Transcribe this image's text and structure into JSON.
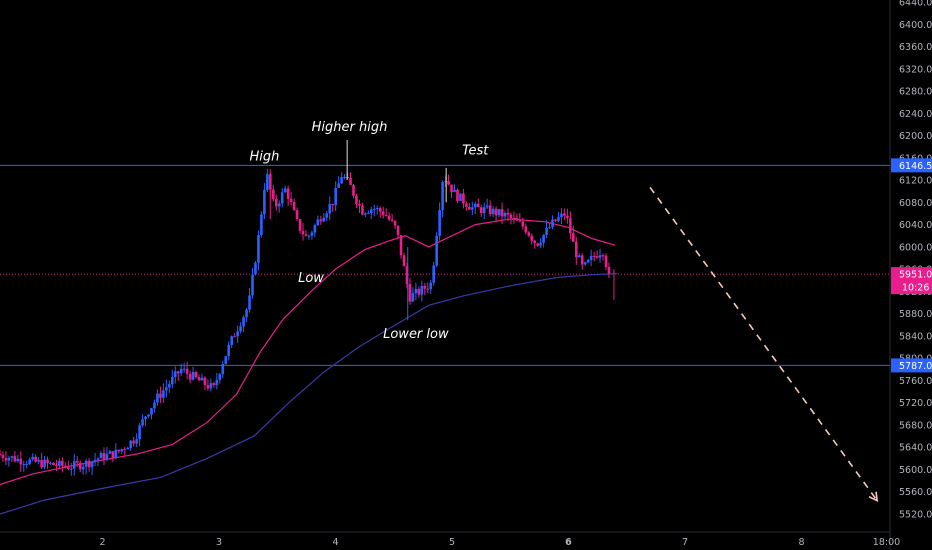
{
  "chart_data": {
    "type": "candlestick",
    "x_tick_labels": [
      "2",
      "3",
      "4",
      "5",
      "6",
      "7",
      "8",
      "18:00"
    ],
    "y_tick_labels": [
      "6440.0",
      "6400.0",
      "6360.0",
      "6320.0",
      "6280.0",
      "6240.0",
      "6200.0",
      "6160.0",
      "6120.0",
      "6080.0",
      "6040.0",
      "6000.0",
      "5960.0",
      "5920.0",
      "5880.0",
      "5840.0",
      "5800.0",
      "5760.0",
      "5720.0",
      "5680.0",
      "5640.0",
      "5600.0",
      "5560.0",
      "5520.0"
    ],
    "ylim": [
      5505,
      6450
    ],
    "xlim": [
      1.12,
      8.76
    ],
    "horizontal_levels": [
      {
        "value": 6146.5,
        "label": "6146.5",
        "color": "#2962ff"
      },
      {
        "value": 5787.0,
        "label": "5787.0",
        "color": "#2962ff"
      }
    ],
    "current_price": {
      "value": 5951.0,
      "label": "5951.0",
      "countdown": "10:26",
      "color": "#e91e8c"
    },
    "annotations": [
      {
        "text": "High",
        "x": 3.39,
        "y": 6155
      },
      {
        "text": "Higher high",
        "x": 4.12,
        "y": 6208
      },
      {
        "text": "Test",
        "x": 5.2,
        "y": 6166
      },
      {
        "text": "Low",
        "x": 3.79,
        "y": 5937
      },
      {
        "text": "Lower low",
        "x": 4.69,
        "y": 5836
      }
    ],
    "price_path": [
      [
        1.12,
        5628
      ],
      [
        1.3,
        5618
      ],
      [
        1.55,
        5610
      ],
      [
        1.75,
        5605
      ],
      [
        1.9,
        5612
      ],
      [
        2.0,
        5622
      ],
      [
        2.15,
        5630
      ],
      [
        2.3,
        5655
      ],
      [
        2.4,
        5700
      ],
      [
        2.5,
        5730
      ],
      [
        2.6,
        5755
      ],
      [
        2.7,
        5780
      ],
      [
        2.85,
        5760
      ],
      [
        2.98,
        5745
      ],
      [
        3.05,
        5790
      ],
      [
        3.15,
        5840
      ],
      [
        3.28,
        5895
      ],
      [
        3.36,
        6010
      ],
      [
        3.43,
        6135
      ],
      [
        3.5,
        6070
      ],
      [
        3.6,
        6105
      ],
      [
        3.7,
        6040
      ],
      [
        3.78,
        6015
      ],
      [
        3.9,
        6055
      ],
      [
        4.0,
        6080
      ],
      [
        4.08,
        6130
      ],
      [
        4.15,
        6110
      ],
      [
        4.25,
        6065
      ],
      [
        4.35,
        6070
      ],
      [
        4.45,
        6060
      ],
      [
        4.55,
        6030
      ],
      [
        4.61,
        5965
      ],
      [
        4.66,
        5910
      ],
      [
        4.75,
        5920
      ],
      [
        4.85,
        5935
      ],
      [
        4.9,
        6040
      ],
      [
        4.95,
        6130
      ],
      [
        5.05,
        6095
      ],
      [
        5.2,
        6070
      ],
      [
        5.35,
        6065
      ],
      [
        5.5,
        6055
      ],
      [
        5.65,
        6035
      ],
      [
        5.75,
        6005
      ],
      [
        5.9,
        6045
      ],
      [
        6.0,
        6060
      ],
      [
        6.08,
        5995
      ],
      [
        6.15,
        5960
      ],
      [
        6.25,
        5985
      ],
      [
        6.32,
        5995
      ],
      [
        6.37,
        5951
      ]
    ],
    "ma_fast": [
      [
        1.12,
        5573
      ],
      [
        1.4,
        5592
      ],
      [
        1.7,
        5605
      ],
      [
        2.0,
        5617
      ],
      [
        2.3,
        5628
      ],
      [
        2.6,
        5645
      ],
      [
        2.9,
        5685
      ],
      [
        3.15,
        5735
      ],
      [
        3.35,
        5810
      ],
      [
        3.55,
        5870
      ],
      [
        3.8,
        5922
      ],
      [
        4.0,
        5960
      ],
      [
        4.25,
        5995
      ],
      [
        4.45,
        6010
      ],
      [
        4.6,
        6020
      ],
      [
        4.8,
        6000
      ],
      [
        4.9,
        6010
      ],
      [
        5.2,
        6040
      ],
      [
        5.5,
        6050
      ],
      [
        5.8,
        6045
      ],
      [
        6.0,
        6035
      ],
      [
        6.2,
        6015
      ],
      [
        6.4,
        6003
      ]
    ],
    "ma_slow": [
      [
        1.12,
        5520
      ],
      [
        1.5,
        5545
      ],
      [
        2.0,
        5566
      ],
      [
        2.5,
        5586
      ],
      [
        2.9,
        5620
      ],
      [
        3.3,
        5660
      ],
      [
        3.6,
        5720
      ],
      [
        3.9,
        5775
      ],
      [
        4.2,
        5820
      ],
      [
        4.5,
        5858
      ],
      [
        4.8,
        5895
      ],
      [
        5.1,
        5912
      ],
      [
        5.5,
        5930
      ],
      [
        5.9,
        5945
      ],
      [
        6.2,
        5950
      ],
      [
        6.42,
        5952
      ]
    ],
    "projection": {
      "from": [
        6.7,
        6107
      ],
      "to": [
        8.65,
        5544
      ],
      "color": "#f5cbbc"
    },
    "colors": {
      "up": "#2962ff",
      "down": "#e91e8c",
      "ma_fast": "#e91e8c",
      "ma_slow": "#3a3aa8"
    }
  }
}
